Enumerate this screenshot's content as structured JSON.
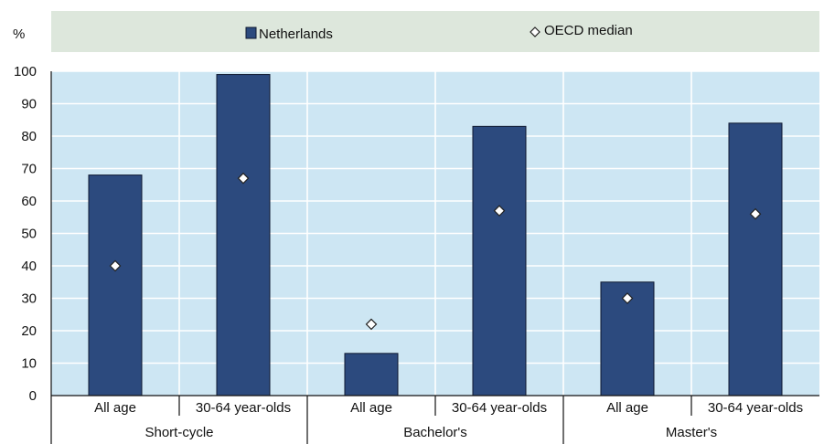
{
  "chart_data": {
    "type": "bar",
    "ylabel": "%",
    "ylim": [
      0,
      100
    ],
    "yticks": [
      0,
      10,
      20,
      30,
      40,
      50,
      60,
      70,
      80,
      90,
      100
    ],
    "grid": true,
    "legend_position": "top",
    "groups": [
      {
        "label": "Short-cycle",
        "categories": [
          "All age",
          "30-64 year-olds"
        ]
      },
      {
        "label": "Bachelor's",
        "categories": [
          "All age",
          "30-64 year-olds"
        ]
      },
      {
        "label": "Master's",
        "categories": [
          "All age",
          "30-64 year-olds"
        ]
      }
    ],
    "categories": [
      "All age",
      "30-64 year-olds",
      "All age",
      "30-64 year-olds",
      "All age",
      "30-64 year-olds"
    ],
    "series": [
      {
        "name": "Netherlands",
        "kind": "bar",
        "marker": "square",
        "color": "#2c4a7e",
        "values": [
          68,
          99,
          13,
          83,
          35,
          84
        ]
      },
      {
        "name": "OECD median",
        "kind": "marker",
        "marker": "diamond",
        "color": "#ffffff",
        "values": [
          40,
          67,
          22,
          57,
          30,
          56
        ]
      }
    ],
    "colors": {
      "plot_background": "#cde6f3",
      "legend_background": "#dde7dc",
      "bar": "#2c4a7e",
      "bar_edge": "#0e1830"
    }
  }
}
